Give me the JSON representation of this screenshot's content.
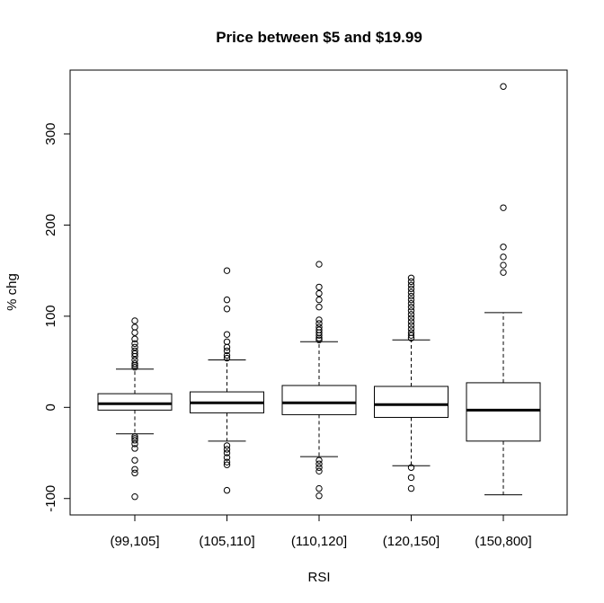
{
  "chart_data": {
    "type": "boxplot",
    "title": "Price between $5 and $19.99",
    "xlabel": "RSI",
    "ylabel": "% chg",
    "ylim": [
      -118,
      370
    ],
    "y_ticks": [
      -100,
      0,
      100,
      200,
      300
    ],
    "y_tick_labels": [
      "-100",
      "0",
      "100",
      "200",
      "300"
    ],
    "categories": [
      "(99,105]",
      "(105,110]",
      "(110,120]",
      "(120,150]",
      "(150,800]"
    ],
    "grid": false,
    "legend": "none",
    "boxes": [
      {
        "category": "(99,105]",
        "whisker_low": -29,
        "q1": -3,
        "median": 4,
        "q3": 15,
        "whisker_high": 42,
        "outliers_high": [
          44,
          46,
          48,
          52,
          56,
          59,
          62,
          66,
          70,
          75,
          82,
          88,
          95
        ],
        "outliers_low": [
          -32,
          -34,
          -36,
          -40,
          -45,
          -58,
          -68,
          -72,
          -98
        ]
      },
      {
        "category": "(105,110]",
        "whisker_low": -37,
        "q1": -6,
        "median": 5,
        "q3": 17,
        "whisker_high": 52,
        "outliers_high": [
          54,
          57,
          62,
          66,
          72,
          80,
          108,
          118,
          150
        ],
        "outliers_low": [
          -42,
          -46,
          -50,
          -55,
          -60,
          -63,
          -91
        ]
      },
      {
        "category": "(110,120]",
        "whisker_low": -54,
        "q1": -8,
        "median": 5,
        "q3": 24,
        "whisker_high": 72,
        "outliers_high": [
          74,
          76,
          79,
          82,
          85,
          88,
          92,
          96,
          110,
          118,
          125,
          132,
          157
        ],
        "outliers_low": [
          -58,
          -62,
          -66,
          -70,
          -89,
          -97
        ]
      },
      {
        "category": "(120,150]",
        "whisker_low": -64,
        "q1": -11,
        "median": 3,
        "q3": 23,
        "whisker_high": 74,
        "outliers_high": [
          76,
          79,
          82,
          86,
          90,
          94,
          98,
          102,
          106,
          110,
          114,
          118,
          122,
          126,
          130,
          134,
          138,
          142
        ],
        "outliers_low": [
          -66,
          -77,
          -89
        ]
      },
      {
        "category": "(150,800]",
        "whisker_low": -96,
        "q1": -37,
        "median": -3,
        "q3": 27,
        "whisker_high": 104,
        "outliers_high": [
          148,
          156,
          165,
          176,
          219,
          352
        ],
        "outliers_low": []
      }
    ]
  }
}
